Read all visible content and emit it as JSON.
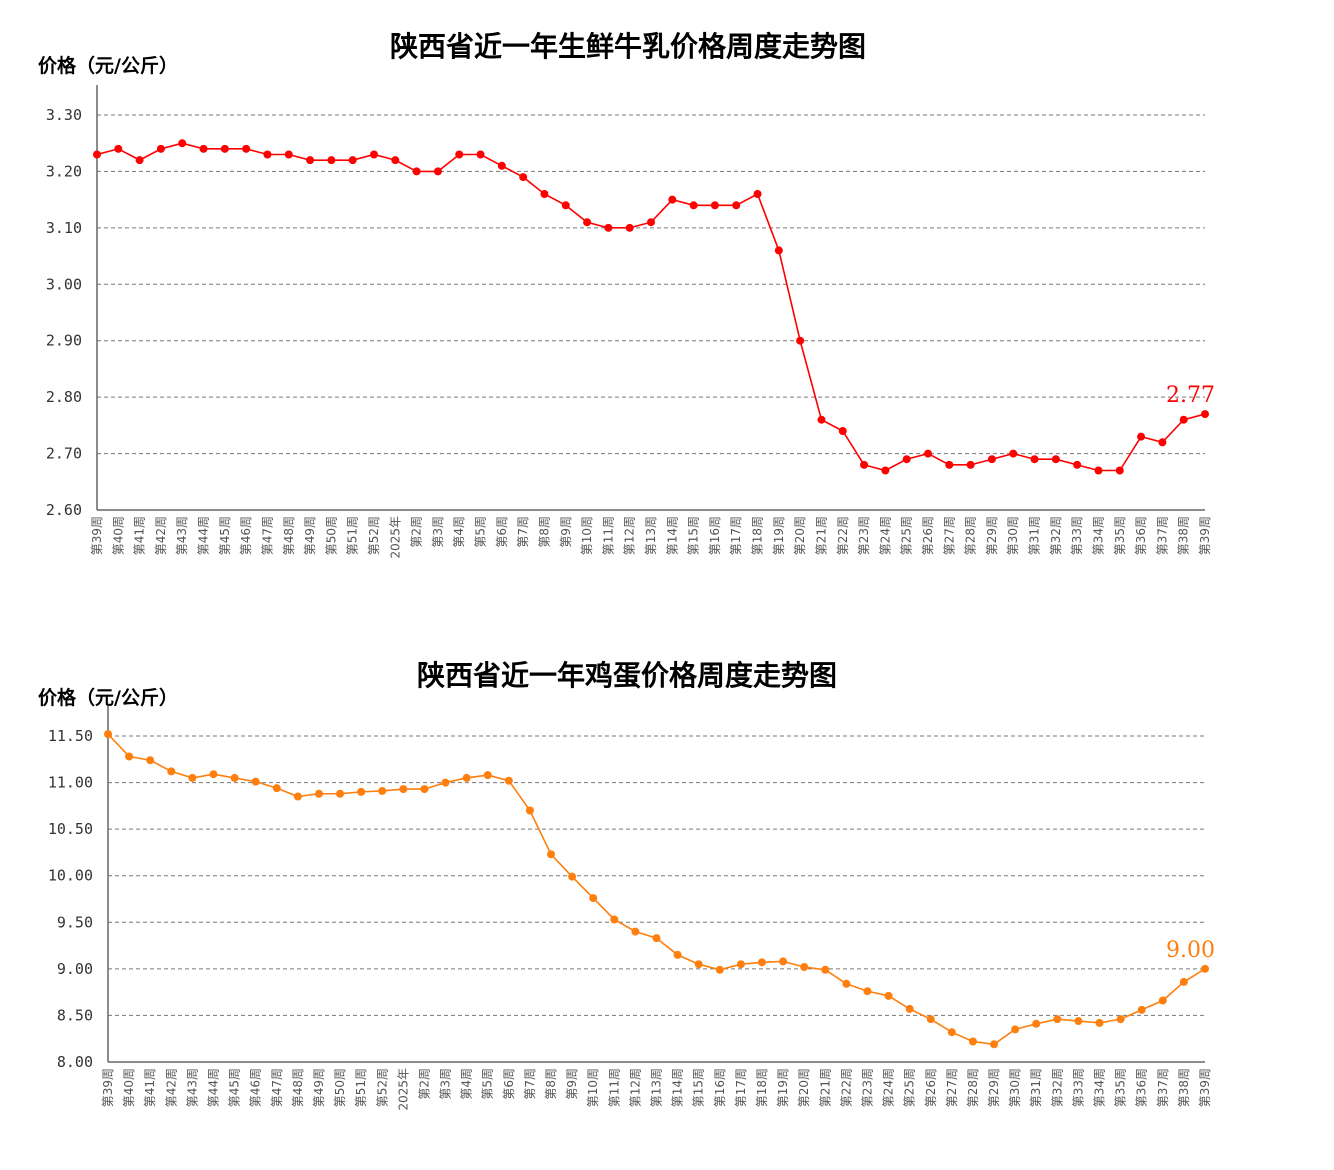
{
  "chart_data": [
    {
      "type": "line",
      "title": "陕西省近一年生鲜牛乳价格周度走势图",
      "ylabel": "价格（元/公斤）",
      "xlabel": "",
      "ylim": [
        2.6,
        3.3
      ],
      "yticks": [
        "3.30",
        "3.20",
        "3.10",
        "3.00",
        "2.90",
        "2.80",
        "2.70",
        "2.60"
      ],
      "ytick_values": [
        3.3,
        3.2,
        3.1,
        3.0,
        2.9,
        2.8,
        2.7,
        2.6
      ],
      "grid": true,
      "color": "#ff0000",
      "end_label": "2.77",
      "categories": [
        "第39周",
        "第40周",
        "第41周",
        "第42周",
        "第43周",
        "第44周",
        "第45周",
        "第46周",
        "第47周",
        "第48周",
        "第49周",
        "第50周",
        "第51周",
        "第52周",
        "2025年",
        "第2周",
        "第3周",
        "第4周",
        "第5周",
        "第6周",
        "第7周",
        "第8周",
        "第9周",
        "第10周",
        "第11周",
        "第12周",
        "第13周",
        "第14周",
        "第15周",
        "第16周",
        "第17周",
        "第18周",
        "第19周",
        "第20周",
        "第21周",
        "第22周",
        "第23周",
        "第24周",
        "第25周",
        "第26周",
        "第27周",
        "第28周",
        "第29周",
        "第30周",
        "第31周",
        "第32周",
        "第33周",
        "第34周",
        "第35周",
        "第36周",
        "第37周",
        "第38周",
        "第39周"
      ],
      "series": [
        {
          "name": "生鲜牛乳",
          "values": [
            3.23,
            3.24,
            3.22,
            3.24,
            3.25,
            3.24,
            3.24,
            3.24,
            3.23,
            3.23,
            3.22,
            3.22,
            3.22,
            3.23,
            3.22,
            3.2,
            3.2,
            3.23,
            3.23,
            3.21,
            3.19,
            3.16,
            3.14,
            3.11,
            3.1,
            3.1,
            3.11,
            3.15,
            3.14,
            3.14,
            3.14,
            3.16,
            3.06,
            2.9,
            2.76,
            2.74,
            2.68,
            2.67,
            2.69,
            2.7,
            2.68,
            2.68,
            2.69,
            2.7,
            2.69,
            2.69,
            2.68,
            2.67,
            2.67,
            2.73,
            2.72,
            2.76,
            2.77
          ]
        }
      ]
    },
    {
      "type": "line",
      "title": "陕西省近一年鸡蛋价格周度走势图",
      "ylabel": "价格（元/公斤）",
      "xlabel": "",
      "ylim": [
        8.0,
        11.5
      ],
      "yticks": [
        "11.50",
        "11.00",
        "10.50",
        "10.00",
        "9.50",
        "9.00",
        "8.50",
        "8.00"
      ],
      "ytick_values": [
        11.5,
        11.0,
        10.5,
        10.0,
        9.5,
        9.0,
        8.5,
        8.0
      ],
      "grid": true,
      "color": "#ff7f0e",
      "end_label": "9.00",
      "categories": [
        "第39周",
        "第40周",
        "第41周",
        "第42周",
        "第43周",
        "第44周",
        "第45周",
        "第46周",
        "第47周",
        "第48周",
        "第49周",
        "第50周",
        "第51周",
        "第52周",
        "2025年",
        "第2周",
        "第3周",
        "第4周",
        "第5周",
        "第6周",
        "第7周",
        "第8周",
        "第9周",
        "第10周",
        "第11周",
        "第12周",
        "第13周",
        "第14周",
        "第15周",
        "第16周",
        "第17周",
        "第18周",
        "第19周",
        "第20周",
        "第21周",
        "第22周",
        "第23周",
        "第24周",
        "第25周",
        "第26周",
        "第27周",
        "第28周",
        "第29周",
        "第30周",
        "第31周",
        "第32周",
        "第33周",
        "第34周",
        "第35周",
        "第36周",
        "第37周",
        "第38周",
        "第39周"
      ],
      "series": [
        {
          "name": "鸡蛋",
          "values": [
            11.52,
            11.28,
            11.24,
            11.12,
            11.05,
            11.09,
            11.05,
            11.01,
            10.94,
            10.85,
            10.88,
            10.88,
            10.9,
            10.91,
            10.93,
            10.93,
            11.0,
            11.05,
            11.08,
            11.02,
            10.7,
            10.23,
            9.99,
            9.76,
            9.53,
            9.4,
            9.33,
            9.15,
            9.05,
            8.99,
            9.05,
            9.07,
            9.08,
            9.02,
            8.99,
            8.84,
            8.76,
            8.71,
            8.57,
            8.46,
            8.32,
            8.22,
            8.19,
            8.35,
            8.41,
            8.46,
            8.44,
            8.42,
            8.46,
            8.56,
            8.66,
            8.86,
            9.0
          ]
        }
      ]
    }
  ]
}
